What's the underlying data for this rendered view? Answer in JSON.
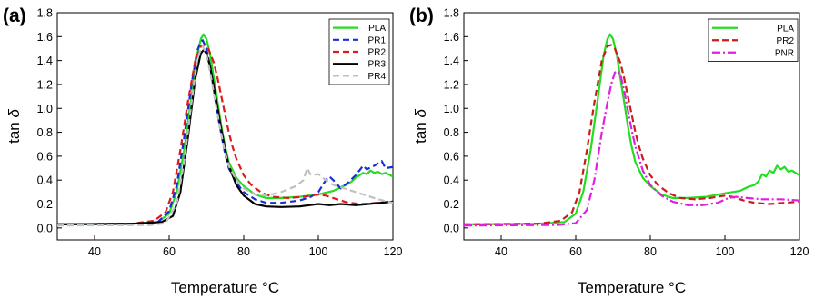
{
  "chart_data": [
    {
      "type": "line",
      "panel_label": "(a)",
      "xlabel": "Temperature °C",
      "ylabel_main": "tan",
      "ylabel_symbol": "δ",
      "xlim": [
        30,
        120
      ],
      "ylim": [
        -0.1,
        1.8
      ],
      "xticks": [
        "40",
        "60",
        "80",
        "100",
        "120"
      ],
      "yticks": [
        "0.0",
        "0.2",
        "0.4",
        "0.6",
        "0.8",
        "1.0",
        "1.2",
        "1.4",
        "1.6",
        "1.8"
      ],
      "grid": false,
      "legend_position": "top-right",
      "series": [
        {
          "name": "PLA",
          "color": "#22dd22",
          "dash": "solid",
          "points": [
            [
              30,
              0.03
            ],
            [
              50,
              0.035
            ],
            [
              57,
              0.05
            ],
            [
              60,
              0.12
            ],
            [
              62,
              0.3
            ],
            [
              64,
              0.65
            ],
            [
              66,
              1.1
            ],
            [
              67.5,
              1.45
            ],
            [
              68.5,
              1.58
            ],
            [
              69.2,
              1.62
            ],
            [
              70,
              1.58
            ],
            [
              71,
              1.45
            ],
            [
              72,
              1.25
            ],
            [
              73,
              1.05
            ],
            [
              74,
              0.85
            ],
            [
              75,
              0.68
            ],
            [
              76,
              0.55
            ],
            [
              78,
              0.42
            ],
            [
              80,
              0.35
            ],
            [
              83,
              0.28
            ],
            [
              86,
              0.25
            ],
            [
              90,
              0.25
            ],
            [
              95,
              0.26
            ],
            [
              100,
              0.28
            ],
            [
              104,
              0.31
            ],
            [
              106,
              0.34
            ],
            [
              108,
              0.37
            ],
            [
              109,
              0.39
            ],
            [
              110,
              0.42
            ],
            [
              111,
              0.44
            ],
            [
              112,
              0.46
            ],
            [
              113,
              0.45
            ],
            [
              114,
              0.48
            ],
            [
              115,
              0.46
            ],
            [
              116,
              0.47
            ],
            [
              117,
              0.45
            ],
            [
              118,
              0.46
            ],
            [
              120,
              0.43
            ]
          ]
        },
        {
          "name": "PR1",
          "color": "#1a2ed8",
          "dash": "dashed",
          "points": [
            [
              30,
              0.03
            ],
            [
              50,
              0.035
            ],
            [
              57,
              0.05
            ],
            [
              60,
              0.14
            ],
            [
              62,
              0.35
            ],
            [
              64,
              0.75
            ],
            [
              66,
              1.2
            ],
            [
              67.5,
              1.48
            ],
            [
              68.5,
              1.56
            ],
            [
              69,
              1.57
            ],
            [
              70,
              1.5
            ],
            [
              71,
              1.35
            ],
            [
              72,
              1.15
            ],
            [
              73,
              0.95
            ],
            [
              74,
              0.78
            ],
            [
              75,
              0.62
            ],
            [
              76,
              0.5
            ],
            [
              78,
              0.38
            ],
            [
              80,
              0.3
            ],
            [
              83,
              0.24
            ],
            [
              86,
              0.21
            ],
            [
              90,
              0.21
            ],
            [
              95,
              0.23
            ],
            [
              98,
              0.26
            ],
            [
              100,
              0.3
            ],
            [
              102,
              0.4
            ],
            [
              103,
              0.43
            ],
            [
              104,
              0.4
            ],
            [
              106,
              0.33
            ],
            [
              108,
              0.38
            ],
            [
              110,
              0.44
            ],
            [
              112,
              0.52
            ],
            [
              113,
              0.49
            ],
            [
              115,
              0.52
            ],
            [
              117,
              0.56
            ],
            [
              118,
              0.5
            ],
            [
              120,
              0.51
            ]
          ]
        },
        {
          "name": "PR2",
          "color": "#dd1b1b",
          "dash": "dashed",
          "points": [
            [
              30,
              0.03
            ],
            [
              50,
              0.035
            ],
            [
              56,
              0.06
            ],
            [
              59,
              0.13
            ],
            [
              61,
              0.3
            ],
            [
              63,
              0.65
            ],
            [
              65,
              1.05
            ],
            [
              67,
              1.4
            ],
            [
              68.5,
              1.52
            ],
            [
              69.5,
              1.53
            ],
            [
              70.5,
              1.5
            ],
            [
              72,
              1.38
            ],
            [
              73,
              1.25
            ],
            [
              74,
              1.1
            ],
            [
              75,
              0.95
            ],
            [
              76,
              0.8
            ],
            [
              77,
              0.68
            ],
            [
              78,
              0.58
            ],
            [
              80,
              0.44
            ],
            [
              82,
              0.36
            ],
            [
              85,
              0.29
            ],
            [
              88,
              0.26
            ],
            [
              92,
              0.25
            ],
            [
              96,
              0.26
            ],
            [
              100,
              0.28
            ],
            [
              102,
              0.27
            ],
            [
              105,
              0.24
            ],
            [
              108,
              0.21
            ],
            [
              112,
              0.2
            ],
            [
              116,
              0.21
            ],
            [
              120,
              0.22
            ]
          ]
        },
        {
          "name": "PR3",
          "color": "#000000",
          "dash": "solid",
          "points": [
            [
              30,
              0.03
            ],
            [
              50,
              0.035
            ],
            [
              58,
              0.05
            ],
            [
              61,
              0.1
            ],
            [
              63,
              0.3
            ],
            [
              65,
              0.75
            ],
            [
              67,
              1.25
            ],
            [
              68.5,
              1.46
            ],
            [
              69.3,
              1.49
            ],
            [
              70,
              1.46
            ],
            [
              71,
              1.35
            ],
            [
              72,
              1.18
            ],
            [
              73,
              1.0
            ],
            [
              74,
              0.82
            ],
            [
              75,
              0.66
            ],
            [
              76,
              0.52
            ],
            [
              78,
              0.36
            ],
            [
              80,
              0.27
            ],
            [
              83,
              0.2
            ],
            [
              86,
              0.18
            ],
            [
              90,
              0.175
            ],
            [
              95,
              0.18
            ],
            [
              100,
              0.2
            ],
            [
              103,
              0.19
            ],
            [
              106,
              0.2
            ],
            [
              110,
              0.19
            ],
            [
              115,
              0.205
            ],
            [
              120,
              0.22
            ]
          ]
        },
        {
          "name": "PR4",
          "color": "#c0c0c0",
          "dash": "dashed",
          "points": [
            [
              30,
              0.02
            ],
            [
              55,
              0.025
            ],
            [
              59,
              0.04
            ],
            [
              62,
              0.2
            ],
            [
              64,
              0.55
            ],
            [
              66,
              1.05
            ],
            [
              67.5,
              1.4
            ],
            [
              68.5,
              1.5
            ],
            [
              69,
              1.52
            ],
            [
              70,
              1.45
            ],
            [
              71,
              1.3
            ],
            [
              72,
              1.12
            ],
            [
              73,
              0.95
            ],
            [
              74,
              0.78
            ],
            [
              75,
              0.63
            ],
            [
              76,
              0.52
            ],
            [
              78,
              0.4
            ],
            [
              80,
              0.33
            ],
            [
              83,
              0.28
            ],
            [
              86,
              0.27
            ],
            [
              90,
              0.3
            ],
            [
              94,
              0.35
            ],
            [
              96,
              0.4
            ],
            [
              97,
              0.5
            ],
            [
              98,
              0.44
            ],
            [
              100,
              0.45
            ],
            [
              102,
              0.4
            ],
            [
              104,
              0.36
            ],
            [
              108,
              0.32
            ],
            [
              112,
              0.28
            ],
            [
              116,
              0.24
            ],
            [
              120,
              0.21
            ]
          ]
        }
      ]
    },
    {
      "type": "line",
      "panel_label": "(b)",
      "xlabel": "Temperature °C",
      "ylabel_main": "tan",
      "ylabel_symbol": "δ",
      "xlim": [
        30,
        120
      ],
      "ylim": [
        -0.1,
        1.8
      ],
      "xticks": [
        "40",
        "60",
        "80",
        "100",
        "120"
      ],
      "yticks": [
        "0.0",
        "0.2",
        "0.4",
        "0.6",
        "0.8",
        "1.0",
        "1.2",
        "1.4",
        "1.6",
        "1.8"
      ],
      "grid": false,
      "legend_position": "top-right",
      "series": [
        {
          "name": "PLA",
          "color": "#22dd22",
          "dash": "solid",
          "points": [
            [
              30,
              0.03
            ],
            [
              50,
              0.035
            ],
            [
              57,
              0.05
            ],
            [
              60,
              0.12
            ],
            [
              62,
              0.3
            ],
            [
              64,
              0.65
            ],
            [
              66,
              1.1
            ],
            [
              67.5,
              1.45
            ],
            [
              68.5,
              1.58
            ],
            [
              69.2,
              1.62
            ],
            [
              70,
              1.58
            ],
            [
              71,
              1.45
            ],
            [
              72,
              1.25
            ],
            [
              73,
              1.05
            ],
            [
              74,
              0.85
            ],
            [
              75,
              0.68
            ],
            [
              76,
              0.55
            ],
            [
              78,
              0.42
            ],
            [
              80,
              0.35
            ],
            [
              83,
              0.28
            ],
            [
              86,
              0.25
            ],
            [
              90,
              0.25
            ],
            [
              95,
              0.26
            ],
            [
              100,
              0.29
            ],
            [
              104,
              0.31
            ],
            [
              106,
              0.34
            ],
            [
              108,
              0.36
            ],
            [
              109,
              0.39
            ],
            [
              110,
              0.45
            ],
            [
              111,
              0.43
            ],
            [
              112,
              0.48
            ],
            [
              113,
              0.46
            ],
            [
              114,
              0.52
            ],
            [
              115,
              0.49
            ],
            [
              116,
              0.51
            ],
            [
              117,
              0.47
            ],
            [
              118,
              0.48
            ],
            [
              120,
              0.44
            ]
          ]
        },
        {
          "name": "PR2",
          "color": "#cc1b1b",
          "dash": "dashed",
          "points": [
            [
              30,
              0.03
            ],
            [
              50,
              0.035
            ],
            [
              56,
              0.06
            ],
            [
              59,
              0.13
            ],
            [
              61,
              0.3
            ],
            [
              63,
              0.65
            ],
            [
              65,
              1.05
            ],
            [
              67,
              1.4
            ],
            [
              68.5,
              1.52
            ],
            [
              69.5,
              1.53
            ],
            [
              70.5,
              1.5
            ],
            [
              72,
              1.38
            ],
            [
              73,
              1.25
            ],
            [
              74,
              1.1
            ],
            [
              75,
              0.95
            ],
            [
              76,
              0.8
            ],
            [
              77,
              0.68
            ],
            [
              78,
              0.58
            ],
            [
              80,
              0.44
            ],
            [
              82,
              0.36
            ],
            [
              85,
              0.29
            ],
            [
              88,
              0.25
            ],
            [
              92,
              0.24
            ],
            [
              96,
              0.25
            ],
            [
              100,
              0.27
            ],
            [
              102,
              0.26
            ],
            [
              105,
              0.23
            ],
            [
              108,
              0.21
            ],
            [
              112,
              0.2
            ],
            [
              116,
              0.21
            ],
            [
              120,
              0.22
            ]
          ]
        },
        {
          "name": "PNR",
          "color": "#e020e0",
          "dash": "dashdot",
          "points": [
            [
              30,
              0.02
            ],
            [
              55,
              0.025
            ],
            [
              60,
              0.04
            ],
            [
              63,
              0.15
            ],
            [
              65,
              0.4
            ],
            [
              67,
              0.8
            ],
            [
              68.5,
              1.05
            ],
            [
              69.5,
              1.2
            ],
            [
              70.5,
              1.3
            ],
            [
              71.2,
              1.31
            ],
            [
              72,
              1.28
            ],
            [
              73,
              1.15
            ],
            [
              74,
              0.98
            ],
            [
              75,
              0.82
            ],
            [
              76,
              0.68
            ],
            [
              78,
              0.48
            ],
            [
              80,
              0.36
            ],
            [
              83,
              0.27
            ],
            [
              86,
              0.22
            ],
            [
              90,
              0.19
            ],
            [
              94,
              0.19
            ],
            [
              98,
              0.21
            ],
            [
              101,
              0.25
            ],
            [
              103,
              0.26
            ],
            [
              106,
              0.25
            ],
            [
              110,
              0.24
            ],
            [
              115,
              0.24
            ],
            [
              120,
              0.23
            ]
          ]
        }
      ]
    }
  ]
}
